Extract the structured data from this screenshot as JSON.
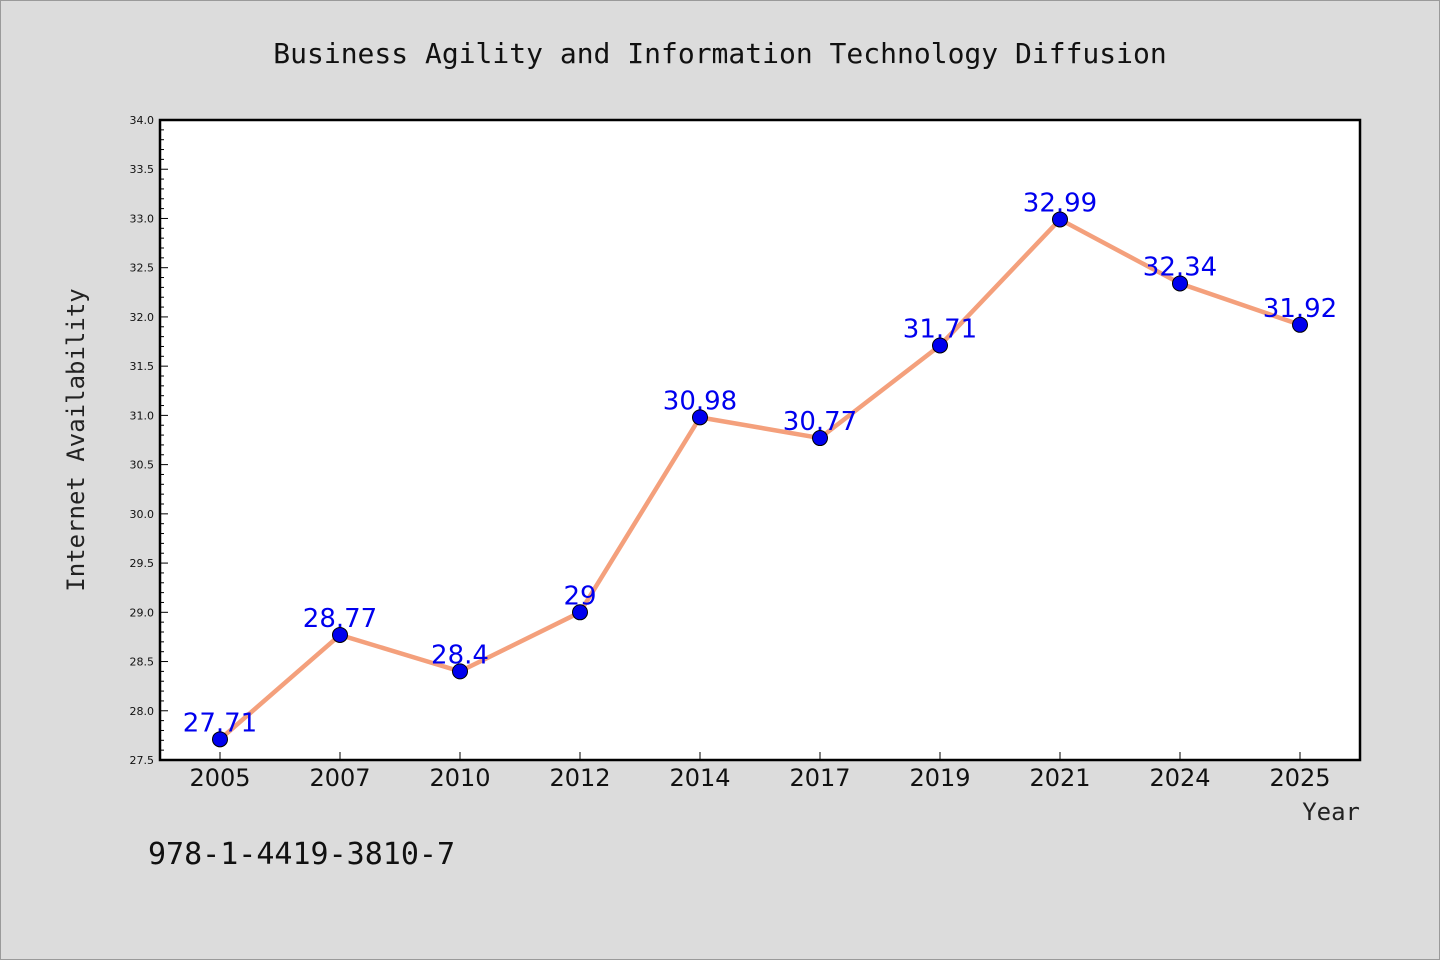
{
  "chart_data": {
    "type": "line",
    "title": "Business Agility and Information Technology Diffusion",
    "xlabel": "Year",
    "ylabel": "Internet Availability",
    "categories": [
      "2005",
      "2007",
      "2010",
      "2012",
      "2014",
      "2017",
      "2019",
      "2021",
      "2024",
      "2025"
    ],
    "series": [
      {
        "values": [
          27.71,
          28.77,
          28.4,
          29,
          30.98,
          30.77,
          31.71,
          32.99,
          32.34,
          31.92
        ],
        "line_color": "#f4a07c",
        "marker_color": "#0000ee"
      }
    ],
    "data_labels": [
      "27.71",
      "28.77",
      "28.4",
      "29",
      "30.98",
      "30.77",
      "31.71",
      "32.99",
      "32.34",
      "31.92"
    ],
    "data_label_color": "#0000ee",
    "ylim": [
      27.5,
      34.0
    ],
    "yticks": [
      "27.5",
      "28.0",
      "28.5",
      "29.0",
      "29.5",
      "30.0",
      "30.5",
      "31.0",
      "31.5",
      "32.0",
      "32.5",
      "33.0",
      "33.5",
      "34.0"
    ],
    "grid": false,
    "legend": "none"
  },
  "annotation": {
    "isbn": "978-1-4419-3810-7"
  },
  "colors": {
    "background": "#dcdcdc",
    "plot_background": "#ffffff",
    "axis": "#000000"
  }
}
